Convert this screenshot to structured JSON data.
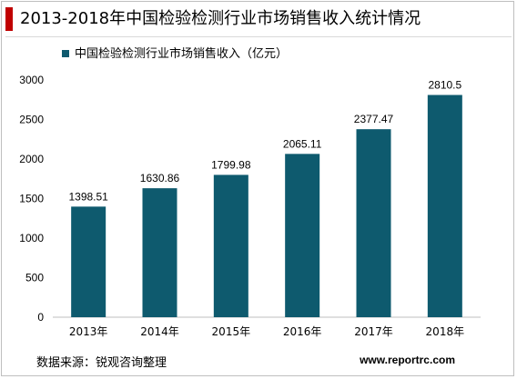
{
  "header": {
    "title": "2013-2018年中国检验检测行业市场销售收入统计情况"
  },
  "footer": {
    "source": "数据来源：锐观咨询整理",
    "website": "www.reportrc.com"
  },
  "colors": {
    "bar": "#0e5a6e",
    "accent": "#c00000"
  },
  "chart_data": {
    "type": "bar",
    "categories": [
      "2013年",
      "2014年",
      "2015年",
      "2016年",
      "2017年",
      "2018年"
    ],
    "series": [
      {
        "name": "中国检验检测行业市场销售收入（亿元）",
        "values": [
          1398.51,
          1630.86,
          1799.98,
          2065.11,
          2377.47,
          2810.5
        ],
        "labels": [
          "1398.51",
          "1630.86",
          "1799.98",
          "2065.11",
          "2377.47",
          "2810.5"
        ]
      }
    ],
    "yticks": [
      0,
      500,
      1000,
      1500,
      2000,
      2500,
      3000
    ],
    "ylim": [
      0,
      3000
    ],
    "legend": "top-left",
    "grid": false
  }
}
